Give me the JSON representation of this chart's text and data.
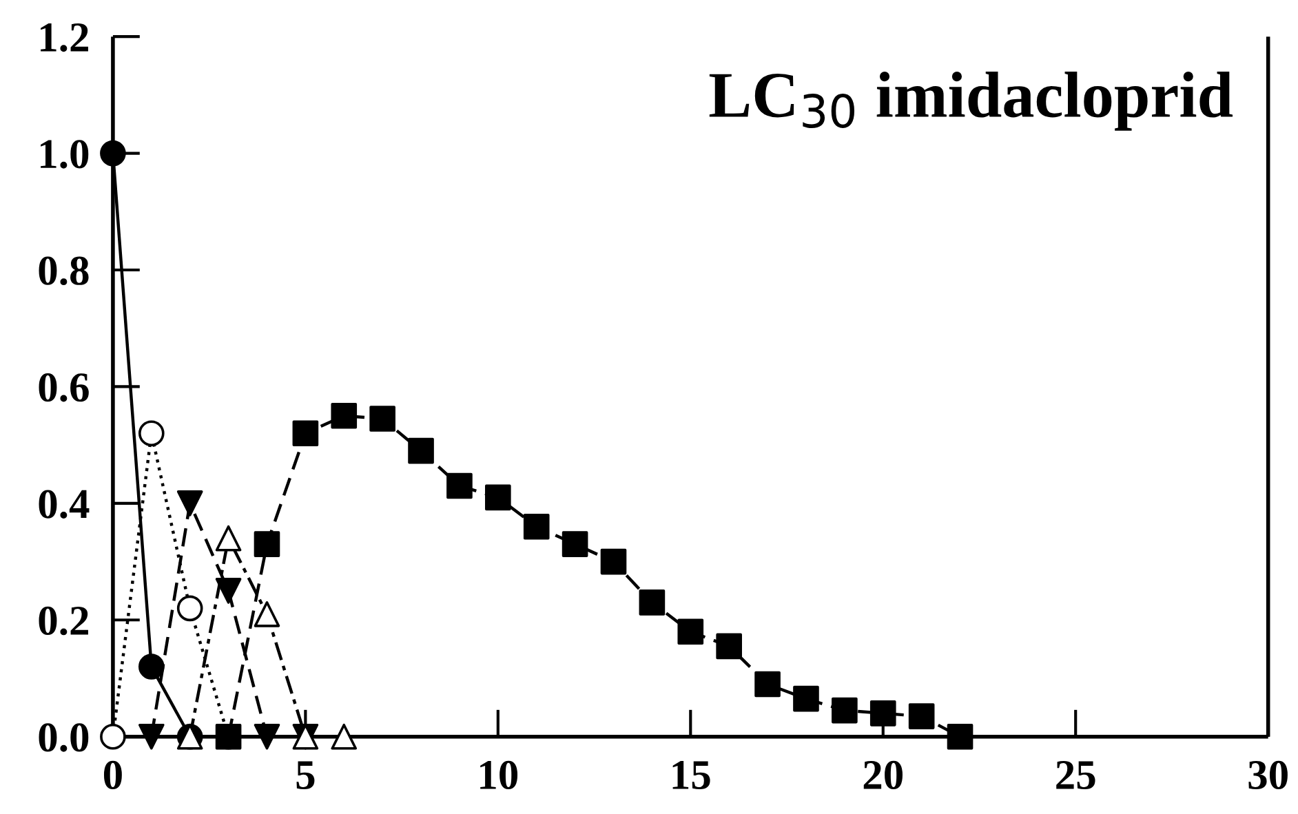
{
  "chart_data": {
    "type": "line",
    "title": "LC$_{30}$ imidacloprid",
    "series": [
      {
        "x": [
          0,
          1,
          2
        ],
        "values": [
          1.0,
          0.12,
          0.0
        ],
        "color": "#000000",
        "marker": "circle",
        "line_style": "solid"
      },
      {
        "x": [
          0,
          1,
          2,
          3
        ],
        "values": [
          0.0,
          0.52,
          0.22,
          0.0
        ],
        "color": "#ffffff",
        "marker": "circle",
        "line_style": "dotted"
      },
      {
        "x": [
          1,
          2,
          3,
          4,
          5
        ],
        "values": [
          0.0,
          0.4,
          0.25,
          0.0,
          0.0
        ],
        "color": "#000000",
        "marker": "triangle_down",
        "line_style": "dashed"
      },
      {
        "x": [
          2,
          3,
          4,
          5,
          6
        ],
        "values": [
          0.0,
          0.34,
          0.21,
          0.0,
          0.0
        ],
        "color": "#ffffff",
        "marker": "triangle",
        "line_style": "dashdot"
      },
      {
        "x": [
          3,
          4,
          5,
          6,
          7,
          8,
          9,
          10,
          11,
          12,
          13,
          14,
          15,
          16,
          17,
          18,
          19,
          20,
          21,
          22
        ],
        "values": [
          0.0,
          0.33,
          0.52,
          0.55,
          0.545,
          0.49,
          0.43,
          0.41,
          0.36,
          0.33,
          0.3,
          0.23,
          0.18,
          0.155,
          0.09,
          0.065,
          0.045,
          0.04,
          0.035,
          0.0
        ],
        "color": "#000000",
        "marker": "square",
        "line_style": "dashed"
      }
    ],
    "xlim": [
      0,
      30
    ],
    "xticks": [
      0,
      5,
      10,
      15,
      20,
      25,
      30
    ],
    "ylim": [
      0,
      1.2
    ],
    "yticks": [
      {
        "value": 0,
        "label": "0.0"
      },
      0.2,
      0.4,
      0.6,
      0.8,
      {
        "value": 1.0,
        "label": "1.0"
      },
      1.2
    ],
    "grid": false,
    "legend": false
  }
}
